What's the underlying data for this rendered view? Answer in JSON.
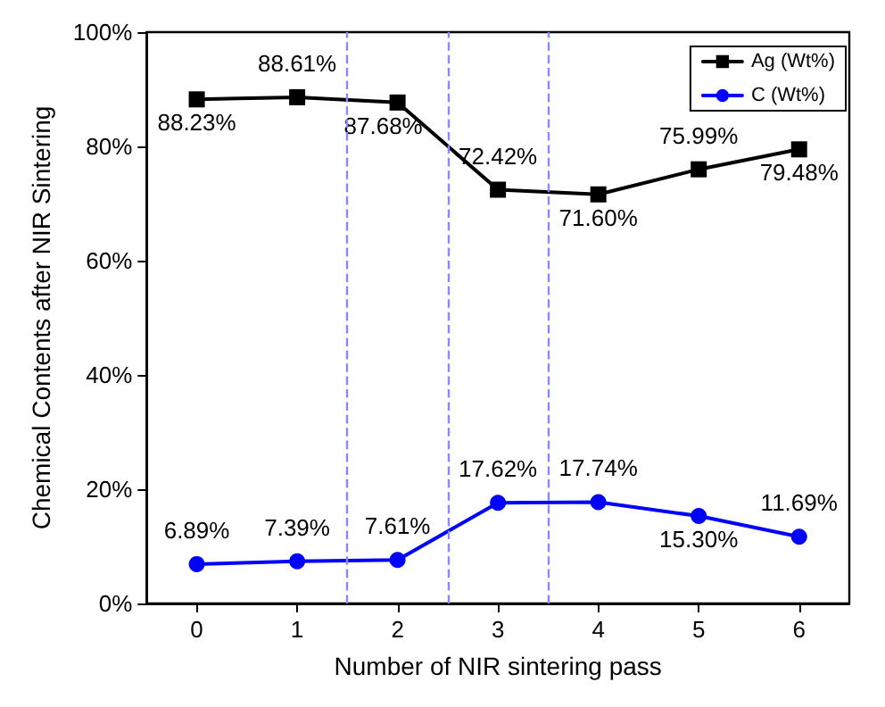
{
  "chart_data": {
    "type": "line",
    "xlabel": "Number of NIR sintering pass",
    "ylabel": "Chemical Contents after NIR Sintering",
    "x": [
      0,
      1,
      2,
      3,
      4,
      5,
      6
    ],
    "series": [
      {
        "name": "Ag (Wt%)",
        "color": "#000000",
        "marker": "square",
        "values": [
          88.23,
          88.61,
          87.68,
          72.42,
          71.6,
          75.99,
          79.48
        ],
        "value_labels": [
          "88.23%",
          "88.61%",
          "87.68%",
          "72.42%",
          "71.60%",
          "75.99%",
          "79.48%"
        ]
      },
      {
        "name": "C (Wt%)",
        "color": "#0000ff",
        "marker": "circle",
        "values": [
          6.89,
          7.39,
          7.61,
          17.62,
          17.74,
          15.3,
          11.69
        ],
        "value_labels": [
          "6.89%",
          "7.39%",
          "7.61%",
          "17.62%",
          "17.74%",
          "15.30%",
          "11.69%"
        ]
      }
    ],
    "xlim": [
      -0.5,
      6.5
    ],
    "xticks": [
      0,
      1,
      2,
      3,
      4,
      5,
      6
    ],
    "ylim": [
      0,
      100
    ],
    "yticks": [
      {
        "value": 0,
        "label": "0%"
      },
      {
        "value": 20,
        "label": "20%"
      },
      {
        "value": 40,
        "label": "40%"
      },
      {
        "value": 60,
        "label": "60%"
      },
      {
        "value": 80,
        "label": "80%"
      },
      {
        "value": 100,
        "label": "100%"
      }
    ],
    "ref_lines": [
      {
        "axis": "x",
        "value": 1.5,
        "color": "#8888ff",
        "line_style": "dashed"
      },
      {
        "axis": "x",
        "value": 2.5,
        "color": "#8888ff",
        "line_style": "dashed"
      },
      {
        "axis": "x",
        "value": 3.5,
        "color": "#8888ff",
        "line_style": "dashed"
      }
    ],
    "legend": "top right",
    "grid": false
  }
}
